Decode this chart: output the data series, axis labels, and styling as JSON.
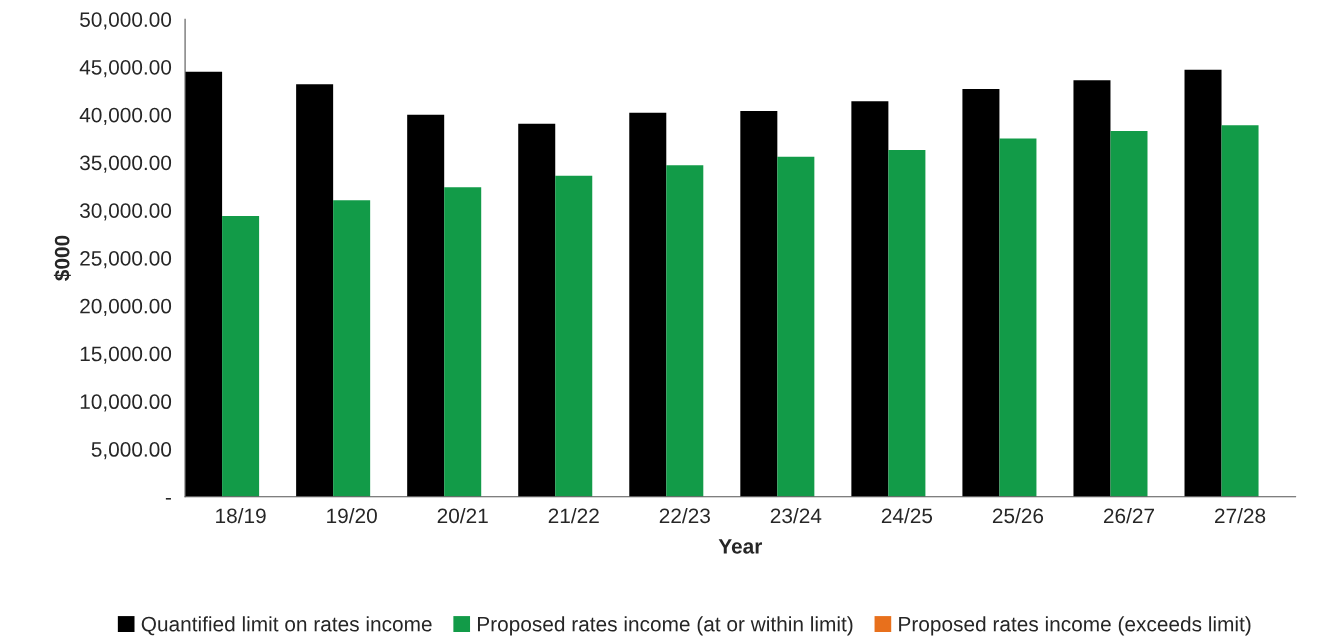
{
  "chart_data": {
    "type": "bar",
    "xlabel": "Year",
    "ylabel": "$000",
    "categories": [
      "18/19",
      "19/20",
      "20/21",
      "21/22",
      "22/23",
      "23/24",
      "24/25",
      "25/26",
      "26/27",
      "27/28"
    ],
    "series": [
      {
        "name": "Quantified limit on rates income",
        "color": "#000000",
        "values": [
          44500,
          43200,
          40000,
          39050,
          40200,
          40400,
          41400,
          42700,
          43600,
          44700
        ]
      },
      {
        "name": "Proposed rates income (at or within limit)",
        "color": "#129b48",
        "values": [
          29400,
          31050,
          32400,
          33600,
          34700,
          35600,
          36300,
          37500,
          38300,
          38900
        ]
      },
      {
        "name": "Proposed rates income (exceeds limit)",
        "color": "#e8701c",
        "values": [
          null,
          null,
          null,
          null,
          null,
          null,
          null,
          null,
          null,
          null
        ]
      }
    ],
    "ylim": [
      0,
      50000
    ],
    "yticks": [
      {
        "value": 0,
        "label": "-"
      },
      {
        "value": 5000,
        "label": "5,000.00"
      },
      {
        "value": 10000,
        "label": "10,000.00"
      },
      {
        "value": 15000,
        "label": "15,000.00"
      },
      {
        "value": 20000,
        "label": "20,000.00"
      },
      {
        "value": 25000,
        "label": "25,000.00"
      },
      {
        "value": 30000,
        "label": "30,000.00"
      },
      {
        "value": 35000,
        "label": "35,000.00"
      },
      {
        "value": 40000,
        "label": "40,000.00"
      },
      {
        "value": 45000,
        "label": "45,000.00"
      },
      {
        "value": 50000,
        "label": "50,000.00"
      }
    ],
    "grid": false,
    "legend": "bottom"
  }
}
